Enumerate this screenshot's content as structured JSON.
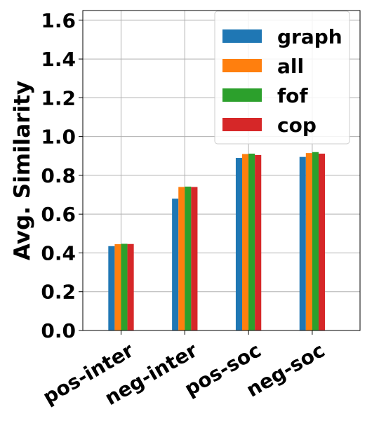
{
  "chart_data": {
    "type": "bar",
    "title": "",
    "xlabel": "",
    "ylabel": "Avg. Similarity",
    "ylim": [
      0.0,
      1.65
    ],
    "yticks": [
      "0.0",
      "0.2",
      "0.4",
      "0.6",
      "0.8",
      "1.0",
      "1.2",
      "1.4",
      "1.6"
    ],
    "categories": [
      "pos-inter",
      "neg-inter",
      "pos-soc",
      "neg-soc"
    ],
    "grid": true,
    "legend_position": "top-right",
    "series": [
      {
        "name": "graph",
        "color": "#1f77b4",
        "values": [
          0.435,
          0.68,
          0.89,
          0.895
        ]
      },
      {
        "name": "all",
        "color": "#ff7f0e",
        "values": [
          0.445,
          0.74,
          0.91,
          0.915
        ]
      },
      {
        "name": "fof",
        "color": "#2ca02c",
        "values": [
          0.447,
          0.742,
          0.912,
          0.92
        ]
      },
      {
        "name": "cop",
        "color": "#d62728",
        "values": [
          0.446,
          0.74,
          0.905,
          0.912
        ]
      }
    ]
  }
}
